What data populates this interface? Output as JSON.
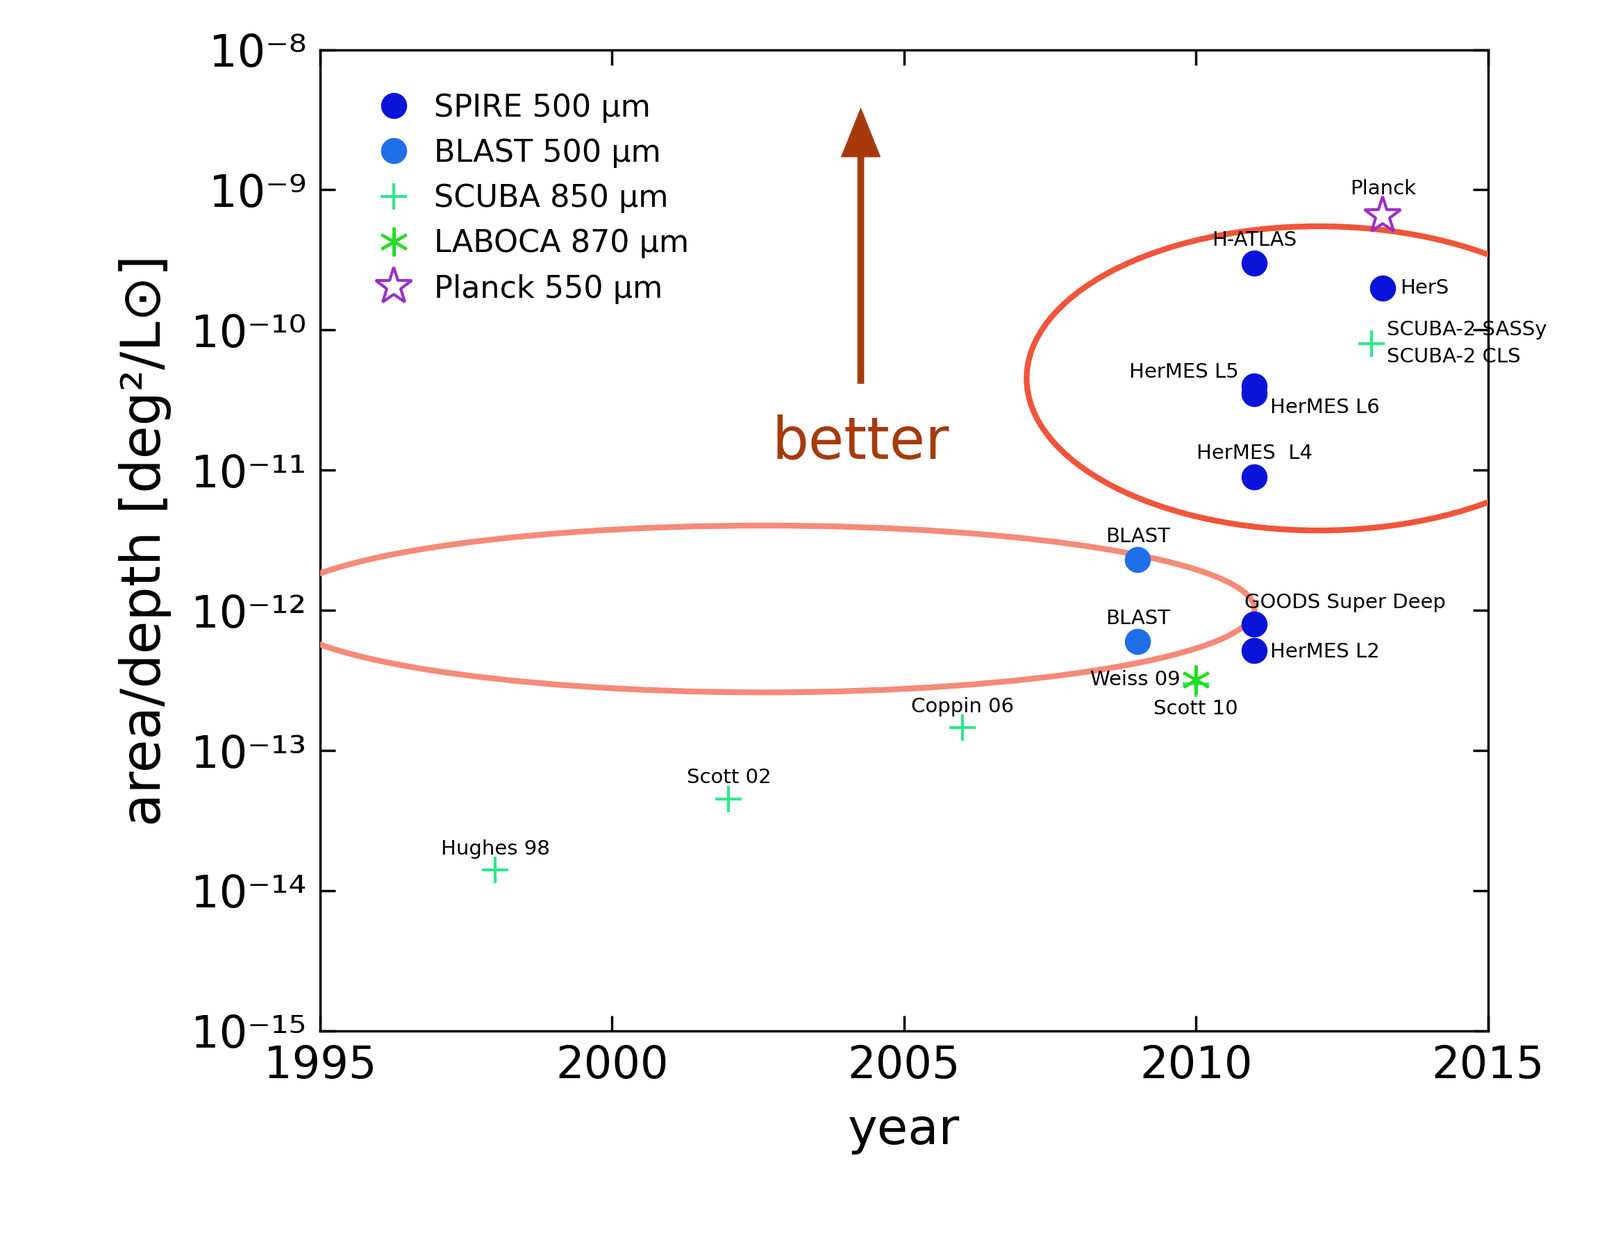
{
  "chart_data": {
    "type": "scatter",
    "x_label": "year",
    "y_label": "area/depth [deg²/L⊙]",
    "annotation": "better",
    "log": "y",
    "legend": "upper left",
    "xlim": [
      1995,
      2015
    ],
    "xticks": [
      1995,
      2000,
      2005,
      2010,
      2015
    ],
    "ylim": [
      1e-15,
      1e-08
    ],
    "yticks": [
      {
        "value": 1e-15,
        "label": "10⁻¹⁵"
      },
      {
        "value": 1e-14,
        "label": "10⁻¹⁴"
      },
      {
        "value": 1e-13,
        "label": "10⁻¹³"
      },
      {
        "value": 1e-12,
        "label": "10⁻¹²"
      },
      {
        "value": 1e-11,
        "label": "10⁻¹¹"
      },
      {
        "value": 1e-10,
        "label": "10⁻¹⁰"
      },
      {
        "value": 1e-09,
        "label": "10⁻⁹"
      },
      {
        "value": 1e-08,
        "label": "10⁻⁸"
      }
    ],
    "series": [
      {
        "name": "SPIRE 500 μm",
        "color": "#0a14d9",
        "marker": "circle",
        "x": [
          2011,
          2011,
          2011,
          2011,
          2011,
          2011,
          2013.2
        ],
        "values": [
          3e-10,
          4e-11,
          3.5e-11,
          9e-12,
          8e-13,
          5.2e-13,
          2e-10
        ],
        "labels": [
          "H-ATLAS",
          "HerMES L5",
          "HerMES L6",
          "HerMES  L4",
          "GOODS Super Deep",
          "HerMES L2",
          "HerS"
        ]
      },
      {
        "name": "BLAST 500 μm",
        "color": "#1e6fe8",
        "marker": "circle",
        "x": [
          2009,
          2009
        ],
        "values": [
          2.3e-12,
          6e-13
        ],
        "labels": [
          "BLAST",
          "BLAST"
        ]
      },
      {
        "name": "SCUBA 850 μm",
        "color": "#2ee88a",
        "marker": "plus",
        "x": [
          1998,
          2002,
          2006,
          2010,
          2013,
          2013
        ],
        "values": [
          1.4e-14,
          4.5e-14,
          1.45e-13,
          3e-13,
          8e-11,
          8e-11
        ],
        "labels": [
          "Hughes 98",
          "Scott 02",
          "Coppin 06",
          "Scott 10",
          "SCUBA-2 SASSy",
          "SCUBA-2 CLS"
        ]
      },
      {
        "name": "LABOCA 870 μm",
        "color": "#22dd22",
        "marker": "asterisk",
        "x": [
          2010
        ],
        "values": [
          3.2e-13
        ],
        "labels": [
          "Weiss 09"
        ]
      },
      {
        "name": "Planck 550 μm",
        "color": "#9b30c8",
        "marker": "star",
        "x": [
          2013.2
        ],
        "values": [
          6.5e-10
        ],
        "labels": [
          "Planck"
        ]
      }
    ]
  }
}
